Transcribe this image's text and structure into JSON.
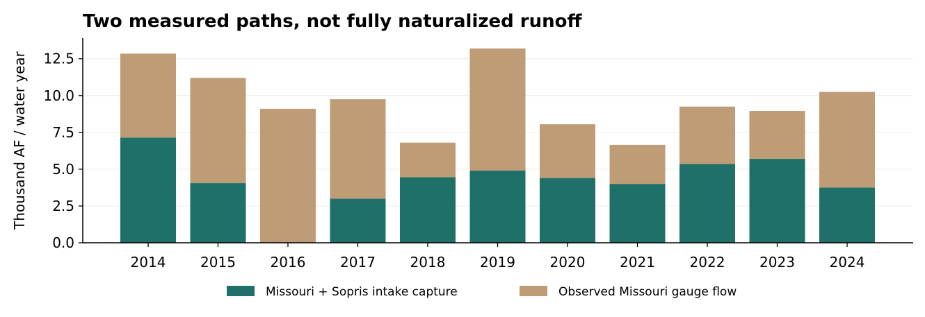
{
  "chart_data": {
    "type": "bar",
    "stacked": true,
    "title": "Two measured paths, not fully naturalized runoff",
    "xlabel": "",
    "ylabel": "Thousand AF / water year",
    "categories": [
      "2014",
      "2015",
      "2016",
      "2017",
      "2018",
      "2019",
      "2020",
      "2021",
      "2022",
      "2023",
      "2024"
    ],
    "series": [
      {
        "name": "Missouri + Sopris intake capture",
        "color": "#1f7069",
        "values": [
          7.15,
          4.05,
          0.0,
          3.0,
          4.45,
          4.9,
          4.4,
          4.0,
          5.35,
          5.7,
          3.75
        ]
      },
      {
        "name": "Observed Missouri gauge flow",
        "color": "#bd9c76",
        "values": [
          5.7,
          7.15,
          9.1,
          6.75,
          2.35,
          8.3,
          3.65,
          2.65,
          3.9,
          3.25,
          6.5
        ]
      }
    ],
    "ylim": [
      0,
      13.9
    ],
    "yticks": [
      0.0,
      2.5,
      5.0,
      7.5,
      10.0,
      12.5
    ],
    "ytick_labels": [
      "0.0",
      "2.5",
      "5.0",
      "7.5",
      "10.0",
      "12.5"
    ],
    "grid": "y",
    "legend_position": "bottom-center"
  }
}
